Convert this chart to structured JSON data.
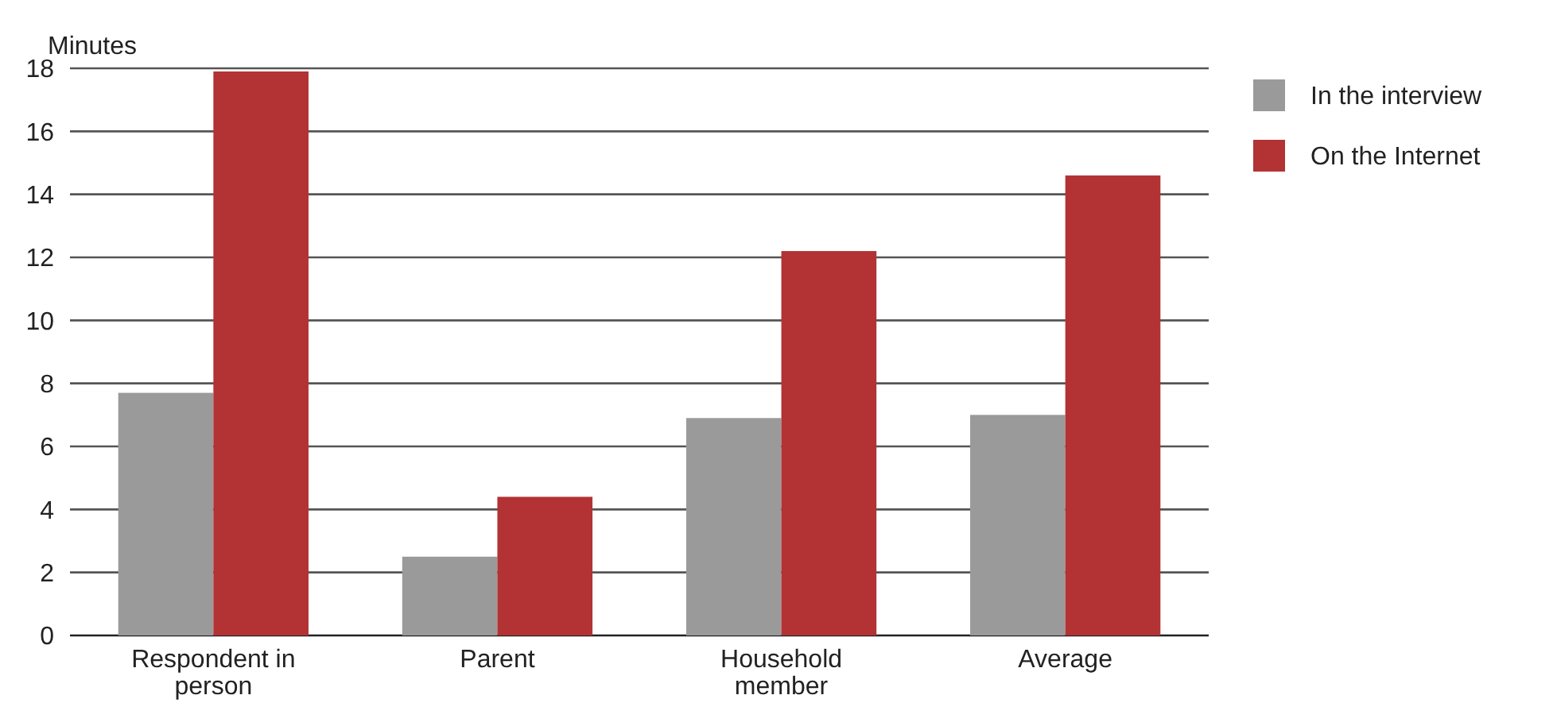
{
  "chart_data": {
    "type": "bar",
    "ylabel": "Minutes",
    "categories": [
      "Respondent in person",
      "Parent",
      "Household member",
      "Average"
    ],
    "series": [
      {
        "name": "In the interview",
        "color": "#9a9a9a",
        "values": [
          7.7,
          2.5,
          6.9,
          7.0
        ]
      },
      {
        "name": "On the Internet",
        "color": "#b33234",
        "values": [
          17.9,
          4.4,
          12.2,
          14.6
        ]
      }
    ],
    "ylim": [
      0,
      18
    ],
    "yticks": [
      0,
      2,
      4,
      6,
      8,
      10,
      12,
      14,
      16,
      18
    ],
    "grid": "y",
    "legend": "right"
  }
}
